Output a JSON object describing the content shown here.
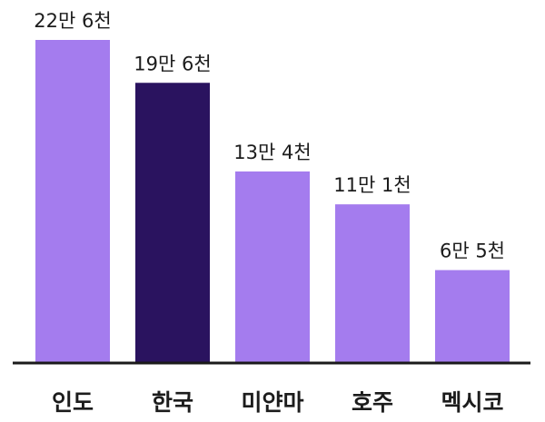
{
  "chart_data": {
    "type": "bar",
    "categories": [
      "인도",
      "한국",
      "미얀마",
      "호주",
      "멕시코"
    ],
    "values": [
      226000,
      196000,
      134000,
      111000,
      65000
    ],
    "data_labels": [
      "22만 6천",
      "19만 6천",
      "13만 4천",
      "11만 1천",
      "6만 5천"
    ],
    "highlight_index": 1,
    "ylim": [
      0,
      226000
    ],
    "grid": false,
    "legend": "none",
    "colors": {
      "bar": "#a47cee",
      "highlight": "#2a135f",
      "axis": "#1a1a1a",
      "text": "#1c1c1c"
    }
  }
}
